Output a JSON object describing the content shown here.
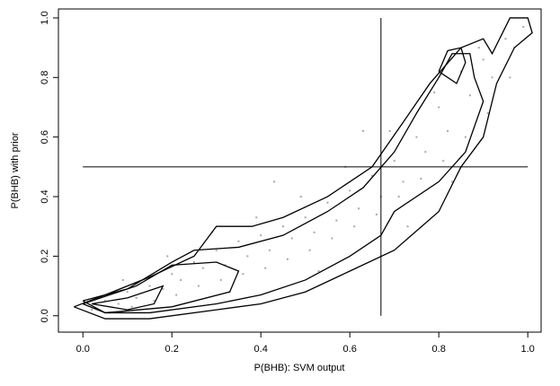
{
  "chart_data": {
    "type": "scatter",
    "xlabel": "P(BHB): SVM output",
    "ylabel": "P(BHB) with prior",
    "xlim": [
      -0.055,
      1.03
    ],
    "ylim": [
      -0.055,
      1.03
    ],
    "xticks": [
      {
        "value": 0,
        "label": "0.0"
      },
      0.2,
      0.4,
      0.6,
      0.8,
      {
        "value": 1,
        "label": "1.0"
      }
    ],
    "yticks": [
      {
        "value": 0,
        "label": "0.0"
      },
      0.2,
      0.4,
      0.6,
      0.8,
      {
        "value": 1,
        "label": "1.0"
      }
    ],
    "series": [
      {
        "color": "#a8a8a8",
        "x": [
          0.02,
          0.05,
          0.08,
          0.1,
          0.12,
          0.15,
          0.18,
          0.2,
          0.22,
          0.25,
          0.27,
          0.3,
          0.32,
          0.35,
          0.37,
          0.4,
          0.42,
          0.45,
          0.47,
          0.5,
          0.52,
          0.55,
          0.57,
          0.6,
          0.62,
          0.65,
          0.67,
          0.7,
          0.72,
          0.75,
          0.77,
          0.8,
          0.82,
          0.85,
          0.87,
          0.9,
          0.92,
          0.95,
          0.97,
          0.99,
          0.06,
          0.11,
          0.16,
          0.21,
          0.26,
          0.31,
          0.36,
          0.41,
          0.46,
          0.51,
          0.56,
          0.61,
          0.66,
          0.71,
          0.76,
          0.81,
          0.86,
          0.91,
          0.96,
          0.09,
          0.19,
          0.29,
          0.39,
          0.49,
          0.59,
          0.69,
          0.79,
          0.89,
          0.33,
          0.53,
          0.73,
          0.83,
          0.63,
          0.43
        ],
        "y": [
          0.02,
          0.05,
          0.04,
          0.08,
          0.06,
          0.1,
          0.09,
          0.14,
          0.12,
          0.18,
          0.16,
          0.22,
          0.17,
          0.25,
          0.2,
          0.27,
          0.22,
          0.3,
          0.26,
          0.33,
          0.28,
          0.38,
          0.32,
          0.42,
          0.36,
          0.47,
          0.4,
          0.52,
          0.45,
          0.6,
          0.55,
          0.7,
          0.62,
          0.82,
          0.74,
          0.86,
          0.8,
          0.93,
          0.9,
          0.97,
          0.01,
          0.03,
          0.05,
          0.07,
          0.1,
          0.12,
          0.14,
          0.16,
          0.19,
          0.22,
          0.26,
          0.3,
          0.34,
          0.4,
          0.46,
          0.52,
          0.6,
          0.68,
          0.8,
          0.12,
          0.2,
          0.28,
          0.33,
          0.4,
          0.5,
          0.62,
          0.75,
          0.9,
          0.08,
          0.15,
          0.3,
          0.45,
          0.62,
          0.45
        ]
      }
    ],
    "contours": [
      {
        "color": "#000000",
        "x": [
          -0.02,
          0.05,
          0.15,
          0.25,
          0.3,
          0.38,
          0.45,
          0.55,
          0.65,
          0.72,
          0.78,
          0.85,
          0.9,
          0.92,
          0.96,
          1.0,
          1.01,
          0.97,
          0.93,
          0.9,
          0.85,
          0.8,
          0.7,
          0.6,
          0.5,
          0.4,
          0.3,
          0.15,
          0.05,
          -0.02
        ],
        "y": [
          0.03,
          0.07,
          0.13,
          0.2,
          0.3,
          0.3,
          0.33,
          0.4,
          0.5,
          0.65,
          0.78,
          0.9,
          0.93,
          0.88,
          1.0,
          1.0,
          0.95,
          0.9,
          0.78,
          0.6,
          0.5,
          0.35,
          0.22,
          0.15,
          0.08,
          0.04,
          0.02,
          -0.01,
          -0.01,
          0.03
        ]
      },
      {
        "color": "#000000",
        "x": [
          0.0,
          0.1,
          0.2,
          0.25,
          0.35,
          0.45,
          0.55,
          0.63,
          0.7,
          0.75,
          0.8,
          0.83,
          0.87,
          0.88,
          0.9,
          0.86,
          0.8,
          0.7,
          0.67,
          0.6,
          0.5,
          0.4,
          0.3,
          0.15,
          0.05,
          0.0
        ],
        "y": [
          0.05,
          0.09,
          0.18,
          0.22,
          0.23,
          0.27,
          0.35,
          0.43,
          0.55,
          0.68,
          0.8,
          0.88,
          0.88,
          0.8,
          0.72,
          0.55,
          0.45,
          0.35,
          0.27,
          0.2,
          0.12,
          0.07,
          0.04,
          0.01,
          0.01,
          0.05
        ]
      },
      {
        "color": "#000000",
        "x": [
          0.0,
          0.12,
          0.2,
          0.3,
          0.35,
          0.33,
          0.2,
          0.05,
          0.0
        ],
        "y": [
          0.04,
          0.1,
          0.17,
          0.18,
          0.15,
          0.08,
          0.03,
          0.01,
          0.04
        ]
      },
      {
        "color": "#000000",
        "x": [
          0.02,
          0.1,
          0.18,
          0.16,
          0.1,
          0.02
        ],
        "y": [
          0.04,
          0.06,
          0.1,
          0.04,
          0.02,
          0.04
        ]
      },
      {
        "color": "#000000",
        "x": [
          0.8,
          0.82,
          0.85,
          0.86,
          0.84,
          0.8
        ],
        "y": [
          0.82,
          0.89,
          0.9,
          0.85,
          0.78,
          0.82
        ]
      }
    ],
    "reference_lines": [
      {
        "color": "#000000",
        "x": [
          0.67,
          0.67
        ],
        "y": [
          0,
          1
        ]
      },
      {
        "color": "#000000",
        "x": [
          0,
          1
        ],
        "y": [
          0.5,
          0.5
        ]
      }
    ]
  }
}
